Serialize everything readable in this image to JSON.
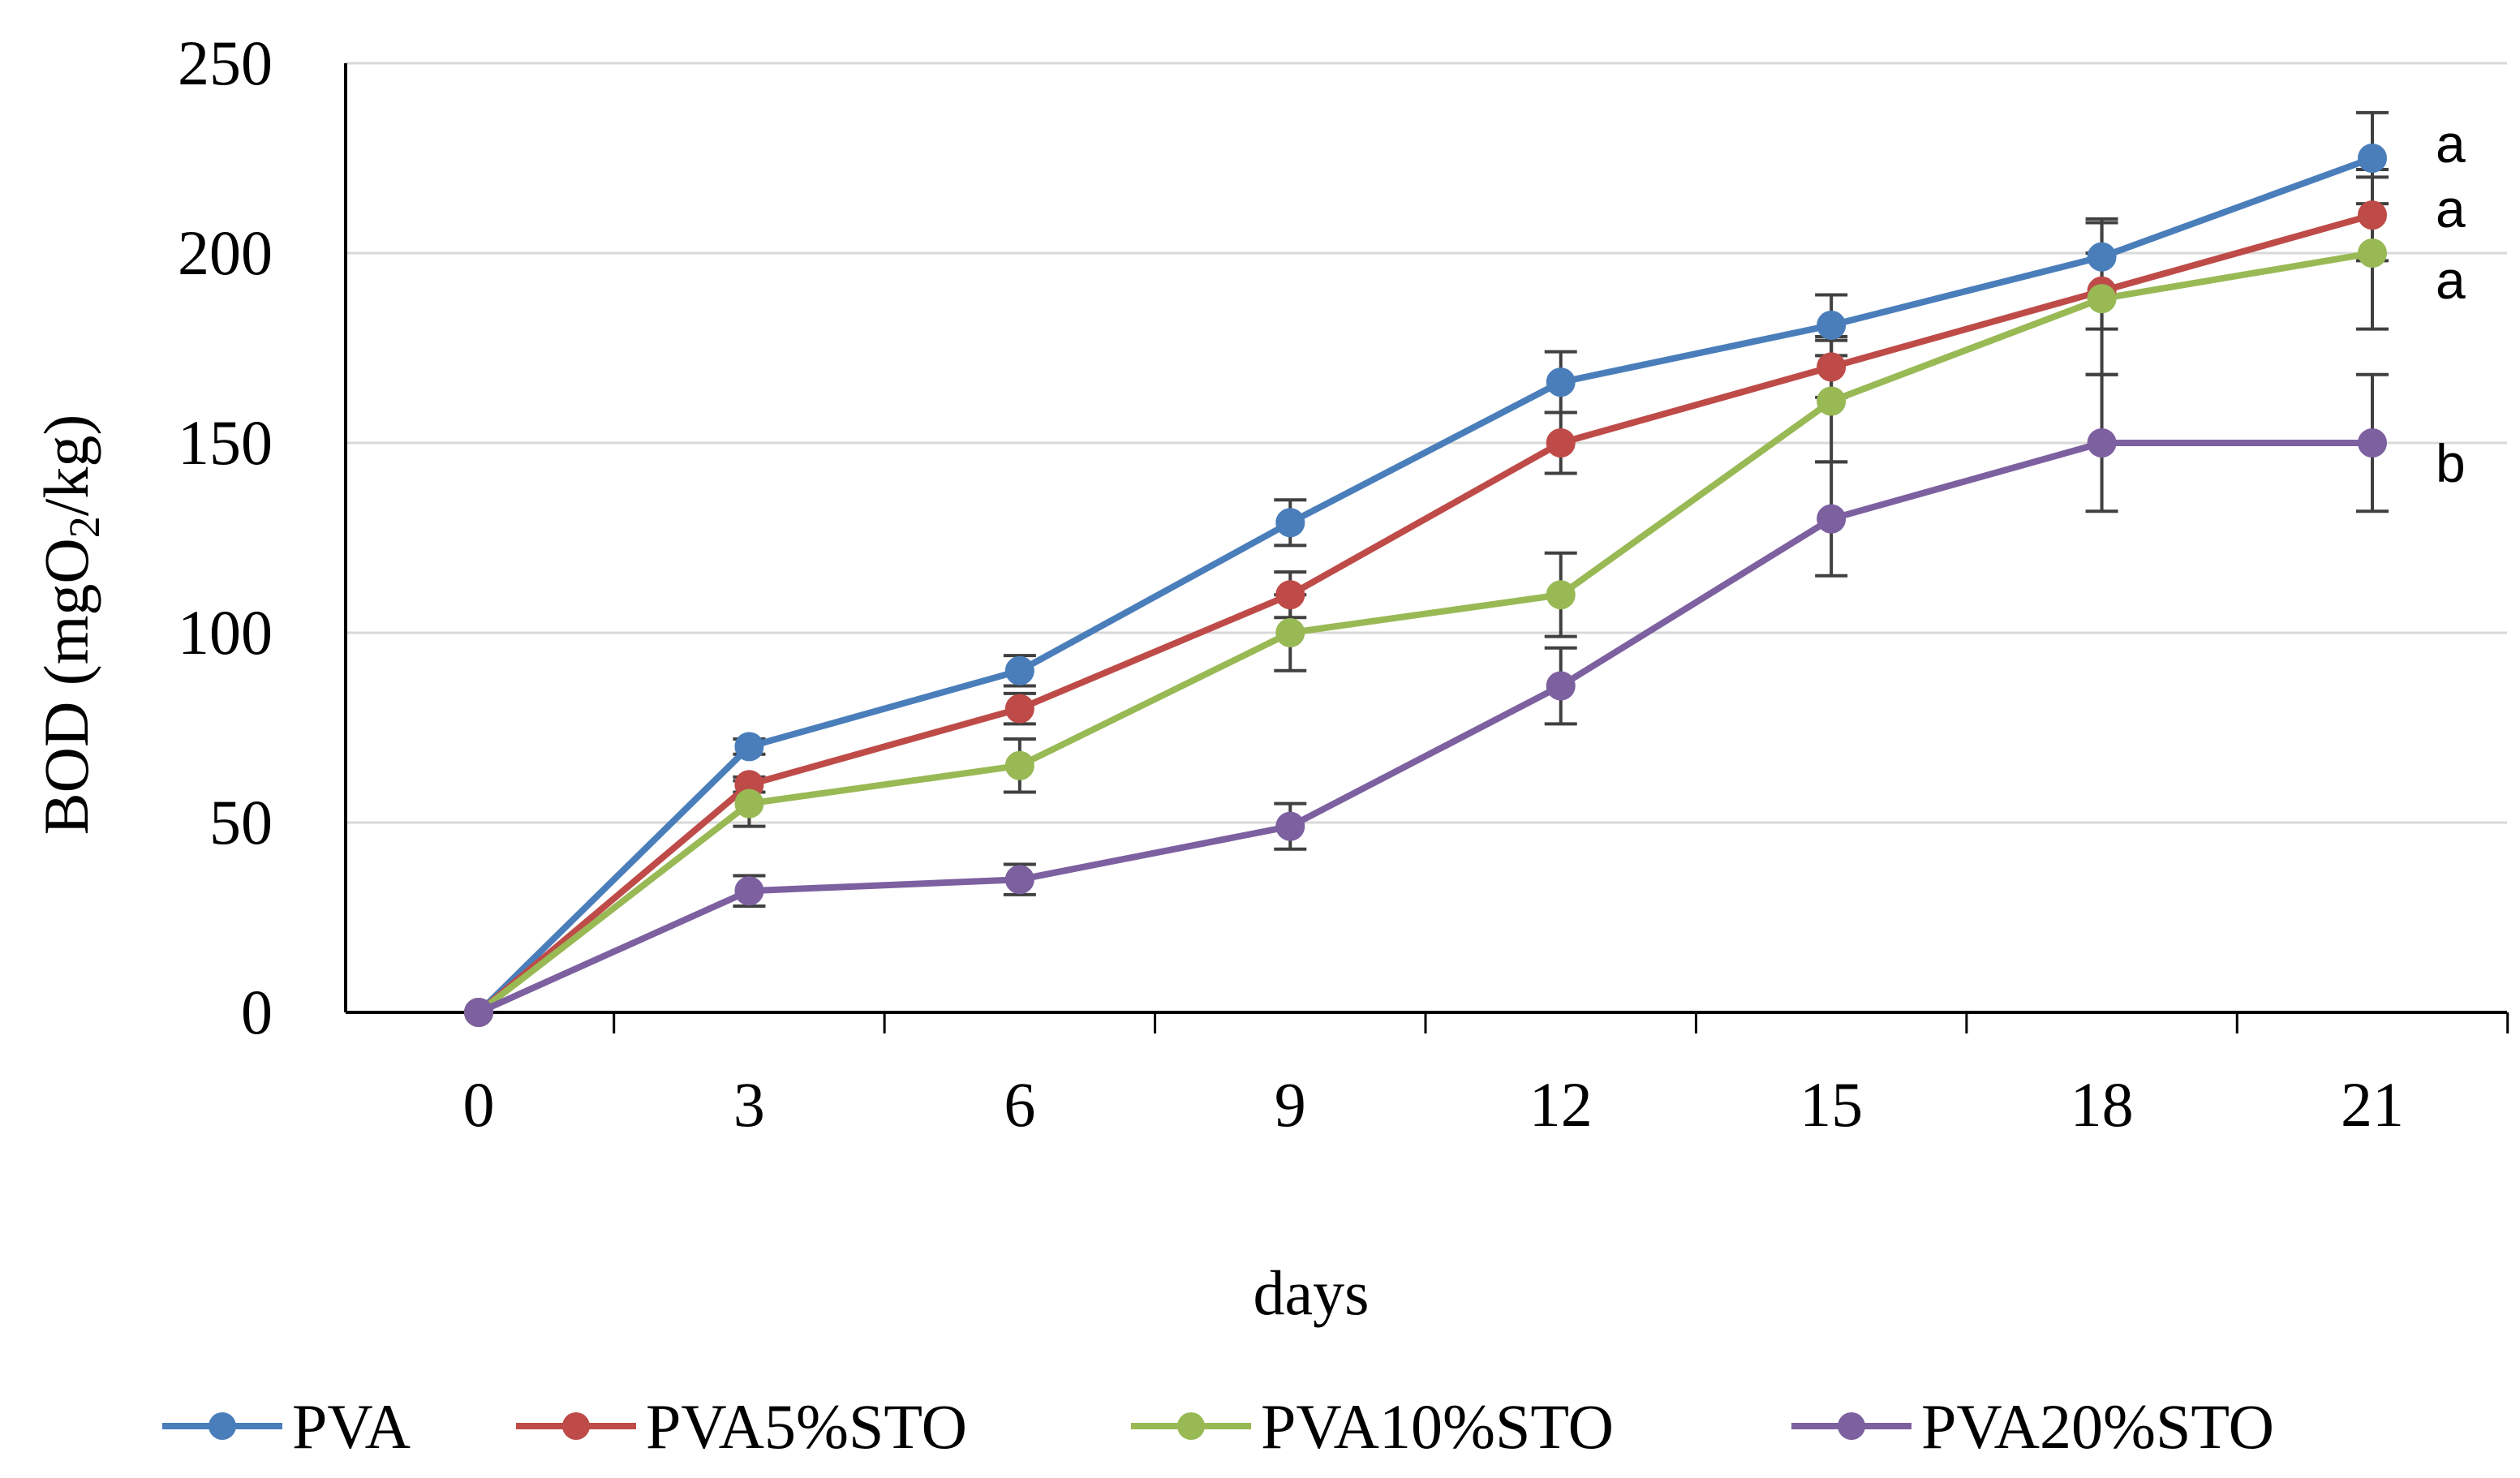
{
  "chart_data": {
    "type": "line",
    "title": "",
    "xlabel": "days",
    "ylabel_prefix": "BOD (mgO",
    "ylabel_sub": "2",
    "ylabel_suffix": "/kg)",
    "x": [
      0,
      3,
      6,
      9,
      12,
      15,
      18,
      21
    ],
    "ylim": [
      0,
      250
    ],
    "yticks": [
      0,
      50,
      100,
      150,
      200,
      250
    ],
    "grid": true,
    "legend_position": "bottom",
    "series": [
      {
        "name": "PVA",
        "color": "#4a7ebb",
        "values": [
          0,
          70,
          90,
          129,
          166,
          181,
          199,
          225
        ],
        "errors": [
          0,
          2,
          4,
          6,
          8,
          8,
          10,
          12
        ]
      },
      {
        "name": "PVA5%STO",
        "color": "#be4b48",
        "values": [
          0,
          60,
          80,
          110,
          150,
          170,
          190,
          210
        ],
        "errors": [
          0,
          2,
          4,
          6,
          8,
          8,
          10,
          12
        ]
      },
      {
        "name": "PVA10%STO",
        "color": "#98b954",
        "values": [
          0,
          55,
          65,
          100,
          110,
          161,
          188,
          200
        ],
        "errors": [
          0,
          6,
          7,
          10,
          11,
          16,
          20,
          20
        ]
      },
      {
        "name": "PVA20%STO",
        "color": "#7d60a0",
        "values": [
          0,
          32,
          35,
          49,
          86,
          130,
          150,
          150
        ],
        "errors": [
          0,
          4,
          4,
          6,
          10,
          15,
          18,
          18
        ]
      }
    ],
    "annotations": [
      {
        "text": "a",
        "series": "PVA"
      },
      {
        "text": "a",
        "series": "PVA5%STO"
      },
      {
        "text": "a",
        "series": "PVA10%STO"
      },
      {
        "text": "b",
        "series": "PVA20%STO"
      }
    ]
  }
}
